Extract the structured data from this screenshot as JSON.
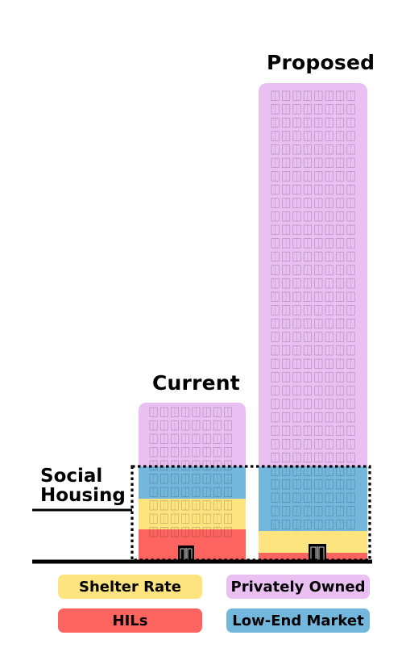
{
  "titles": {
    "current": "Current",
    "proposed": "Proposed",
    "social_housing": "Social Housing"
  },
  "legend": [
    {
      "label": "Shelter Rate",
      "color": "#fde47f"
    },
    {
      "label": "Privately Owned",
      "color": "#e9c0f1"
    },
    {
      "label": "HILs",
      "color": "#fd6460"
    },
    {
      "label": "Low-End Market",
      "color": "#74b7dc"
    }
  ],
  "buildings": [
    {
      "name": "Current",
      "floors": {
        "HILs": 3,
        "Shelter Rate": 3,
        "Low-End Market": 3,
        "Privately Owned": 5
      }
    },
    {
      "name": "Proposed",
      "floors": {
        "HILs": 1,
        "Shelter Rate": 3,
        "Low-End Market": 5,
        "Privately Owned": 29
      }
    }
  ],
  "colors": {
    "shelter_rate": "#fde47f",
    "privately_owned": "#e9c0f1",
    "hils": "#fd6460",
    "low_end_market": "#74b7dc",
    "line": "#000000"
  }
}
